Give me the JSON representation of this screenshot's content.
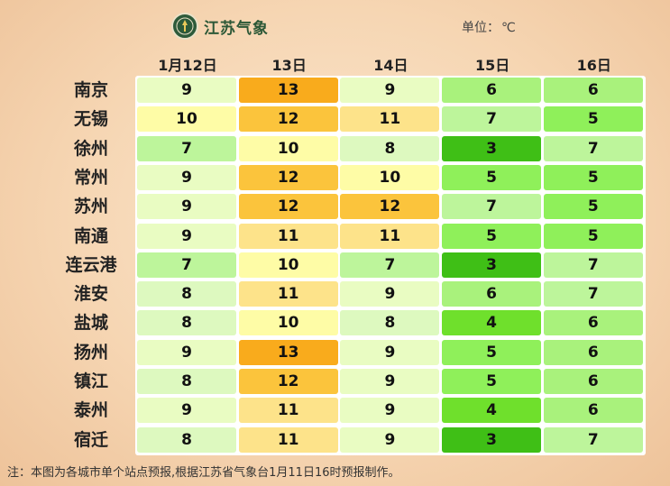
{
  "header": {
    "logo_text": "江苏气象",
    "unit_label": "单位：",
    "unit_value": "℃"
  },
  "chart_data": {
    "type": "table",
    "columns": [
      "1月12日",
      "13日",
      "14日",
      "15日",
      "16日"
    ],
    "rows": [
      {
        "city": "南京",
        "values": [
          9,
          13,
          9,
          6,
          6
        ]
      },
      {
        "city": "无锡",
        "values": [
          10,
          12,
          11,
          7,
          5
        ]
      },
      {
        "city": "徐州",
        "values": [
          7,
          10,
          8,
          3,
          7
        ]
      },
      {
        "city": "常州",
        "values": [
          9,
          12,
          10,
          5,
          5
        ]
      },
      {
        "city": "苏州",
        "values": [
          9,
          12,
          12,
          7,
          5
        ]
      },
      {
        "city": "南通",
        "values": [
          9,
          11,
          11,
          5,
          5
        ]
      },
      {
        "city": "连云港",
        "values": [
          7,
          10,
          7,
          3,
          7
        ]
      },
      {
        "city": "淮安",
        "values": [
          8,
          11,
          9,
          6,
          7
        ]
      },
      {
        "city": "盐城",
        "values": [
          8,
          10,
          8,
          4,
          6
        ]
      },
      {
        "city": "扬州",
        "values": [
          9,
          13,
          9,
          5,
          6
        ]
      },
      {
        "city": "镇江",
        "values": [
          8,
          12,
          9,
          5,
          6
        ]
      },
      {
        "city": "泰州",
        "values": [
          9,
          11,
          9,
          4,
          6
        ]
      },
      {
        "city": "宿迁",
        "values": [
          8,
          11,
          9,
          3,
          7
        ]
      }
    ],
    "color_scale": {
      "3": "#3fbf16",
      "4": "#6fe02c",
      "5": "#8ff05a",
      "6": "#a9f27c",
      "7": "#bdf59b",
      "8": "#ddf9bf",
      "9": "#e9fcc2",
      "10": "#fefca6",
      "11": "#fde38a",
      "12": "#fbc43c",
      "13": "#f9ab1c"
    }
  },
  "footnote": "注：本图为各城市单个站点预报,根据江苏省气象台1月11日16时预报制作。"
}
